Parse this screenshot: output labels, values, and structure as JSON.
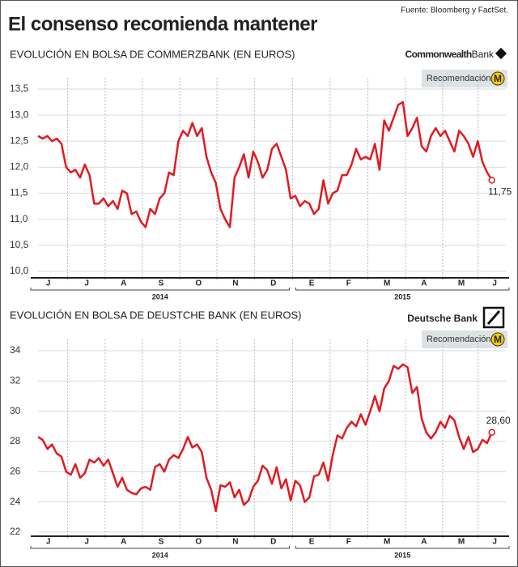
{
  "header": {
    "title": "El consenso recomienda mantener",
    "source": "Fuente: Bloomberg y FactSet."
  },
  "chart_data": [
    {
      "type": "line",
      "title": "EVOLUCIÓN EN BOLSA DE COMMERZBANK (EN EUROS)",
      "logo": [
        "Commonwealth",
        "Bank"
      ],
      "badge": "Recomendación",
      "badge_mark": "M",
      "color": "#e01b22",
      "grid": true,
      "xlim": [
        0,
        100
      ],
      "xticks": [
        {
          "value": 2.2,
          "label": "J"
        },
        {
          "value": 10.4,
          "label": "J"
        },
        {
          "value": 18.3,
          "label": "A"
        },
        {
          "value": 26.3,
          "label": "S"
        },
        {
          "value": 34.3,
          "label": "O"
        },
        {
          "value": 42.2,
          "label": "N"
        },
        {
          "value": 50.3,
          "label": "D"
        },
        {
          "value": 58.5,
          "label": "E"
        },
        {
          "value": 66.4,
          "label": "F"
        },
        {
          "value": 74.6,
          "label": "M"
        },
        {
          "value": 82.5,
          "label": "A"
        },
        {
          "value": 90.5,
          "label": "M"
        },
        {
          "value": 97.6,
          "label": "J"
        }
      ],
      "year_labels": [
        "2014",
        "2015"
      ],
      "ylim": [
        10.0,
        13.5
      ],
      "yticks": [
        {
          "value": 10.0,
          "label": "10,0"
        },
        {
          "value": 10.5,
          "label": "10,5"
        },
        {
          "value": 11.0,
          "label": "11,0"
        },
        {
          "value": 11.5,
          "label": "11,5"
        },
        {
          "value": 12.0,
          "label": "12,0"
        },
        {
          "value": 12.5,
          "label": "12,5"
        },
        {
          "value": 13.0,
          "label": "13,0"
        },
        {
          "value": 13.5,
          "label": "13,5"
        }
      ],
      "values": [
        12.6,
        12.55,
        12.6,
        12.5,
        12.55,
        12.45,
        12.0,
        11.9,
        11.95,
        11.8,
        12.05,
        11.85,
        11.3,
        11.3,
        11.4,
        11.25,
        11.35,
        11.2,
        11.55,
        11.5,
        11.1,
        11.15,
        10.95,
        10.85,
        11.2,
        11.1,
        11.4,
        11.5,
        11.9,
        11.85,
        12.5,
        12.7,
        12.6,
        12.85,
        12.6,
        12.75,
        12.2,
        11.9,
        11.7,
        11.2,
        11.0,
        10.85,
        11.8,
        12.0,
        12.25,
        11.8,
        12.3,
        12.1,
        11.8,
        11.95,
        12.35,
        12.45,
        12.2,
        11.95,
        11.4,
        11.45,
        11.25,
        11.35,
        11.3,
        11.1,
        11.2,
        11.75,
        11.3,
        11.5,
        11.55,
        11.85,
        11.85,
        12.05,
        12.35,
        12.15,
        12.2,
        12.15,
        12.45,
        11.95,
        12.9,
        12.7,
        12.95,
        13.2,
        13.25,
        12.6,
        12.75,
        12.95,
        12.4,
        12.3,
        12.6,
        12.75,
        12.6,
        12.7,
        12.5,
        12.3,
        12.7,
        12.6,
        12.45,
        12.2,
        12.5,
        12.1,
        11.9,
        11.75
      ],
      "value_labels": {
        "97": "11,75"
      }
    },
    {
      "type": "line",
      "title": "EVOLUCIÓN EN BOLSA DE DEUSTCHE BANK (EN EUROS)",
      "logo": [
        "Deutsche Bank"
      ],
      "badge": "Recomendación",
      "badge_mark": "M",
      "color": "#e01b22",
      "grid": true,
      "xlim": [
        0,
        100
      ],
      "xticks": [
        {
          "value": 2.2,
          "label": "J"
        },
        {
          "value": 10.4,
          "label": "J"
        },
        {
          "value": 18.3,
          "label": "A"
        },
        {
          "value": 26.3,
          "label": "S"
        },
        {
          "value": 34.3,
          "label": "O"
        },
        {
          "value": 42.2,
          "label": "N"
        },
        {
          "value": 50.3,
          "label": "D"
        },
        {
          "value": 58.5,
          "label": "E"
        },
        {
          "value": 66.4,
          "label": "F"
        },
        {
          "value": 74.6,
          "label": "M"
        },
        {
          "value": 82.5,
          "label": "A"
        },
        {
          "value": 90.5,
          "label": "M"
        },
        {
          "value": 97.6,
          "label": "J"
        }
      ],
      "year_labels": [
        "2014",
        "2015"
      ],
      "ylim": [
        22,
        34
      ],
      "yticks": [
        22,
        24,
        26,
        28,
        30,
        32,
        34
      ],
      "values": [
        28.3,
        28.1,
        27.5,
        27.8,
        27.2,
        27.0,
        26.0,
        25.8,
        26.5,
        25.6,
        25.9,
        26.8,
        26.6,
        26.9,
        26.4,
        26.8,
        25.9,
        25.0,
        25.6,
        24.8,
        24.6,
        24.5,
        24.9,
        25.0,
        24.8,
        26.3,
        26.5,
        26.0,
        26.8,
        27.1,
        26.9,
        27.5,
        28.3,
        27.6,
        27.8,
        27.3,
        25.6,
        24.8,
        23.4,
        25.1,
        25.0,
        25.3,
        24.3,
        24.8,
        23.8,
        24.1,
        25.0,
        25.4,
        26.4,
        26.1,
        25.2,
        26.3,
        24.9,
        25.5,
        24.1,
        25.4,
        25.1,
        24.0,
        24.3,
        25.7,
        25.8,
        26.6,
        25.4,
        27.1,
        28.4,
        28.2,
        28.9,
        29.3,
        29.0,
        29.8,
        29.1,
        30.0,
        31.0,
        30.0,
        31.5,
        32.0,
        33.0,
        32.8,
        33.1,
        32.9,
        31.2,
        31.6,
        29.5,
        28.6,
        28.2,
        28.6,
        29.3,
        28.9,
        29.7,
        29.4,
        28.3,
        27.5,
        28.3,
        27.3,
        27.5,
        28.1,
        27.9,
        28.6
      ],
      "value_labels": {
        "97": "28,60"
      }
    }
  ]
}
